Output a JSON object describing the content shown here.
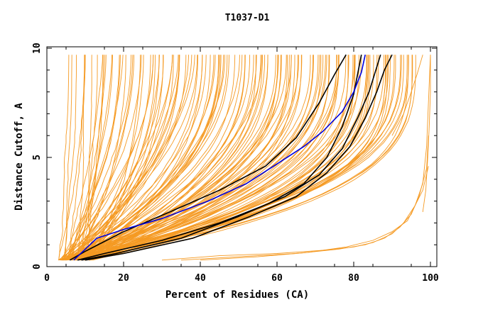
{
  "chart_data": {
    "type": "line",
    "title": "T1037-D1",
    "xlabel": "Percent of Residues (CA)",
    "ylabel": "Distance Cutoff, A",
    "xlim": [
      0,
      100
    ],
    "ylim": [
      0,
      10
    ],
    "x_ticks": [
      0,
      20,
      40,
      60,
      80,
      100
    ],
    "y_ticks": [
      0,
      5,
      10
    ],
    "grid": false,
    "legend": "none",
    "colors": {
      "orange": "#f59a23",
      "black": "#000000",
      "blue": "#0000dd"
    },
    "orange_band_count": 140,
    "orange_band": {
      "start_x_range": [
        3,
        12
      ],
      "end_x_range": [
        6,
        96
      ],
      "y_start": 0.3,
      "y_end": 9.7
    },
    "orange_outliers": [
      {
        "x": [
          30,
          45,
          60,
          72,
          80,
          85,
          90,
          93,
          96,
          98,
          99,
          100
        ],
        "y": [
          0.3,
          0.5,
          0.6,
          0.75,
          0.9,
          1.1,
          1.5,
          2.0,
          2.8,
          3.8,
          5.5,
          9.7
        ]
      },
      {
        "x": [
          35,
          50,
          65,
          76,
          83,
          88,
          92,
          95,
          97,
          99,
          99.5
        ],
        "y": [
          0.3,
          0.45,
          0.6,
          0.8,
          1.0,
          1.3,
          1.8,
          2.4,
          3.2,
          4.5,
          6.0
        ]
      },
      {
        "x": [
          40,
          55,
          68,
          78,
          85,
          90,
          94,
          96,
          98,
          99.5
        ],
        "y": [
          0.3,
          0.45,
          0.65,
          0.9,
          1.2,
          1.6,
          2.1,
          2.8,
          3.5,
          4.6
        ]
      },
      {
        "x": [
          98,
          98.8,
          99.3,
          99.7,
          100,
          100
        ],
        "y": [
          2.5,
          3.5,
          5.0,
          6.5,
          8.0,
          9.7
        ]
      },
      {
        "x": [
          90,
          93,
          95,
          96.5,
          97.5,
          98
        ],
        "y": [
          6.0,
          7.0,
          8.0,
          8.8,
          9.4,
          9.7
        ]
      }
    ],
    "series": [
      {
        "color": "black",
        "x": [
          6,
          10,
          20,
          32,
          45,
          57,
          65,
          71,
          75,
          78
        ],
        "y": [
          0.3,
          0.7,
          1.6,
          2.5,
          3.5,
          4.6,
          5.9,
          7.5,
          8.8,
          9.7
        ]
      },
      {
        "color": "black",
        "x": [
          8,
          15,
          30,
          45,
          58,
          67,
          73,
          77,
          80,
          82
        ],
        "y": [
          0.3,
          0.6,
          1.2,
          2.0,
          2.9,
          3.8,
          5.0,
          6.4,
          7.9,
          9.7
        ]
      },
      {
        "color": "black",
        "x": [
          9,
          18,
          35,
          50,
          62,
          71,
          77,
          81,
          84,
          87
        ],
        "y": [
          0.3,
          0.6,
          1.3,
          2.3,
          3.2,
          4.2,
          5.4,
          6.8,
          8.0,
          9.7
        ]
      },
      {
        "color": "black",
        "x": [
          10,
          20,
          38,
          53,
          65,
          73,
          79,
          83,
          86,
          88,
          90
        ],
        "y": [
          0.3,
          0.6,
          1.3,
          2.3,
          3.2,
          4.3,
          5.5,
          6.8,
          8.0,
          9.0,
          9.7
        ]
      },
      {
        "color": "blue",
        "x": [
          7,
          10,
          13,
          20,
          30,
          42,
          52,
          60,
          67,
          72,
          77,
          80,
          82,
          83
        ],
        "y": [
          0.3,
          0.8,
          1.3,
          1.7,
          2.2,
          3.0,
          3.8,
          4.7,
          5.5,
          6.2,
          7.1,
          8.0,
          8.9,
          9.7
        ]
      }
    ]
  }
}
